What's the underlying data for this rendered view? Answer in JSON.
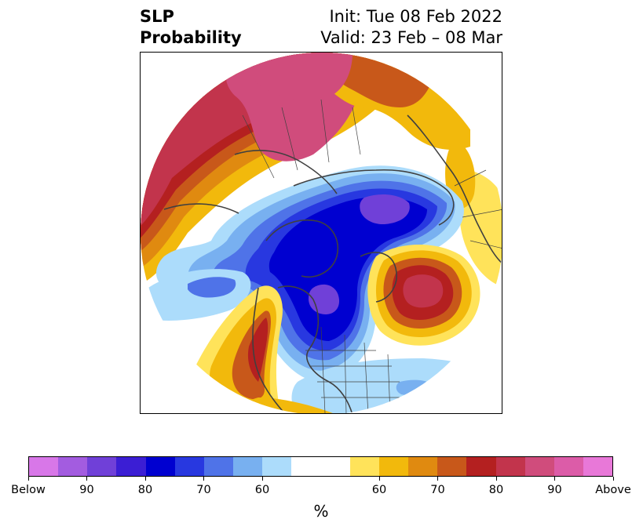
{
  "title": {
    "left_line1": "SLP",
    "left_line2": "Probability",
    "right_line1": "Init: Tue 08 Feb 2022",
    "right_line2": "Valid: 23 Feb – 08 Mar"
  },
  "colorbar": {
    "unit": "%",
    "colors": [
      "#d877e8",
      "#a35ce0",
      "#7040d8",
      "#3b1ed4",
      "#0000d0",
      "#2838e0",
      "#4f73e8",
      "#78b0f0",
      "#acdcfb",
      "#ffffff",
      "#ffffff",
      "#ffe35a",
      "#f2b90c",
      "#e08a10",
      "#c8581a",
      "#b42020",
      "#c2344c",
      "#d04c7c",
      "#dc5ca8",
      "#e878d8"
    ],
    "ticks": [
      {
        "label": "Below",
        "seg": 0
      },
      {
        "label": "90",
        "seg": 2
      },
      {
        "label": "80",
        "seg": 4
      },
      {
        "label": "70",
        "seg": 6
      },
      {
        "label": "60",
        "seg": 8
      },
      {
        "label": "60",
        "seg": 12
      },
      {
        "label": "70",
        "seg": 14
      },
      {
        "label": "80",
        "seg": 16
      },
      {
        "label": "90",
        "seg": 18
      },
      {
        "label": "Above",
        "seg": 20
      }
    ]
  },
  "map": {
    "colors": {
      "above_strong": "#c2344c",
      "above_max": "#d04c7c",
      "above_80": "#b42020",
      "above_70": "#c8581a",
      "above_65": "#e08a10",
      "above_60": "#f2b90c",
      "above_55": "#ffe35a",
      "below_55": "#acdcfb",
      "below_60": "#78b0f0",
      "below_70": "#4f73e8",
      "below_75": "#2838e0",
      "below_80": "#0000d0",
      "below_85": "#3b1ed4",
      "below_90": "#7040d8",
      "coast": "#404040"
    }
  }
}
